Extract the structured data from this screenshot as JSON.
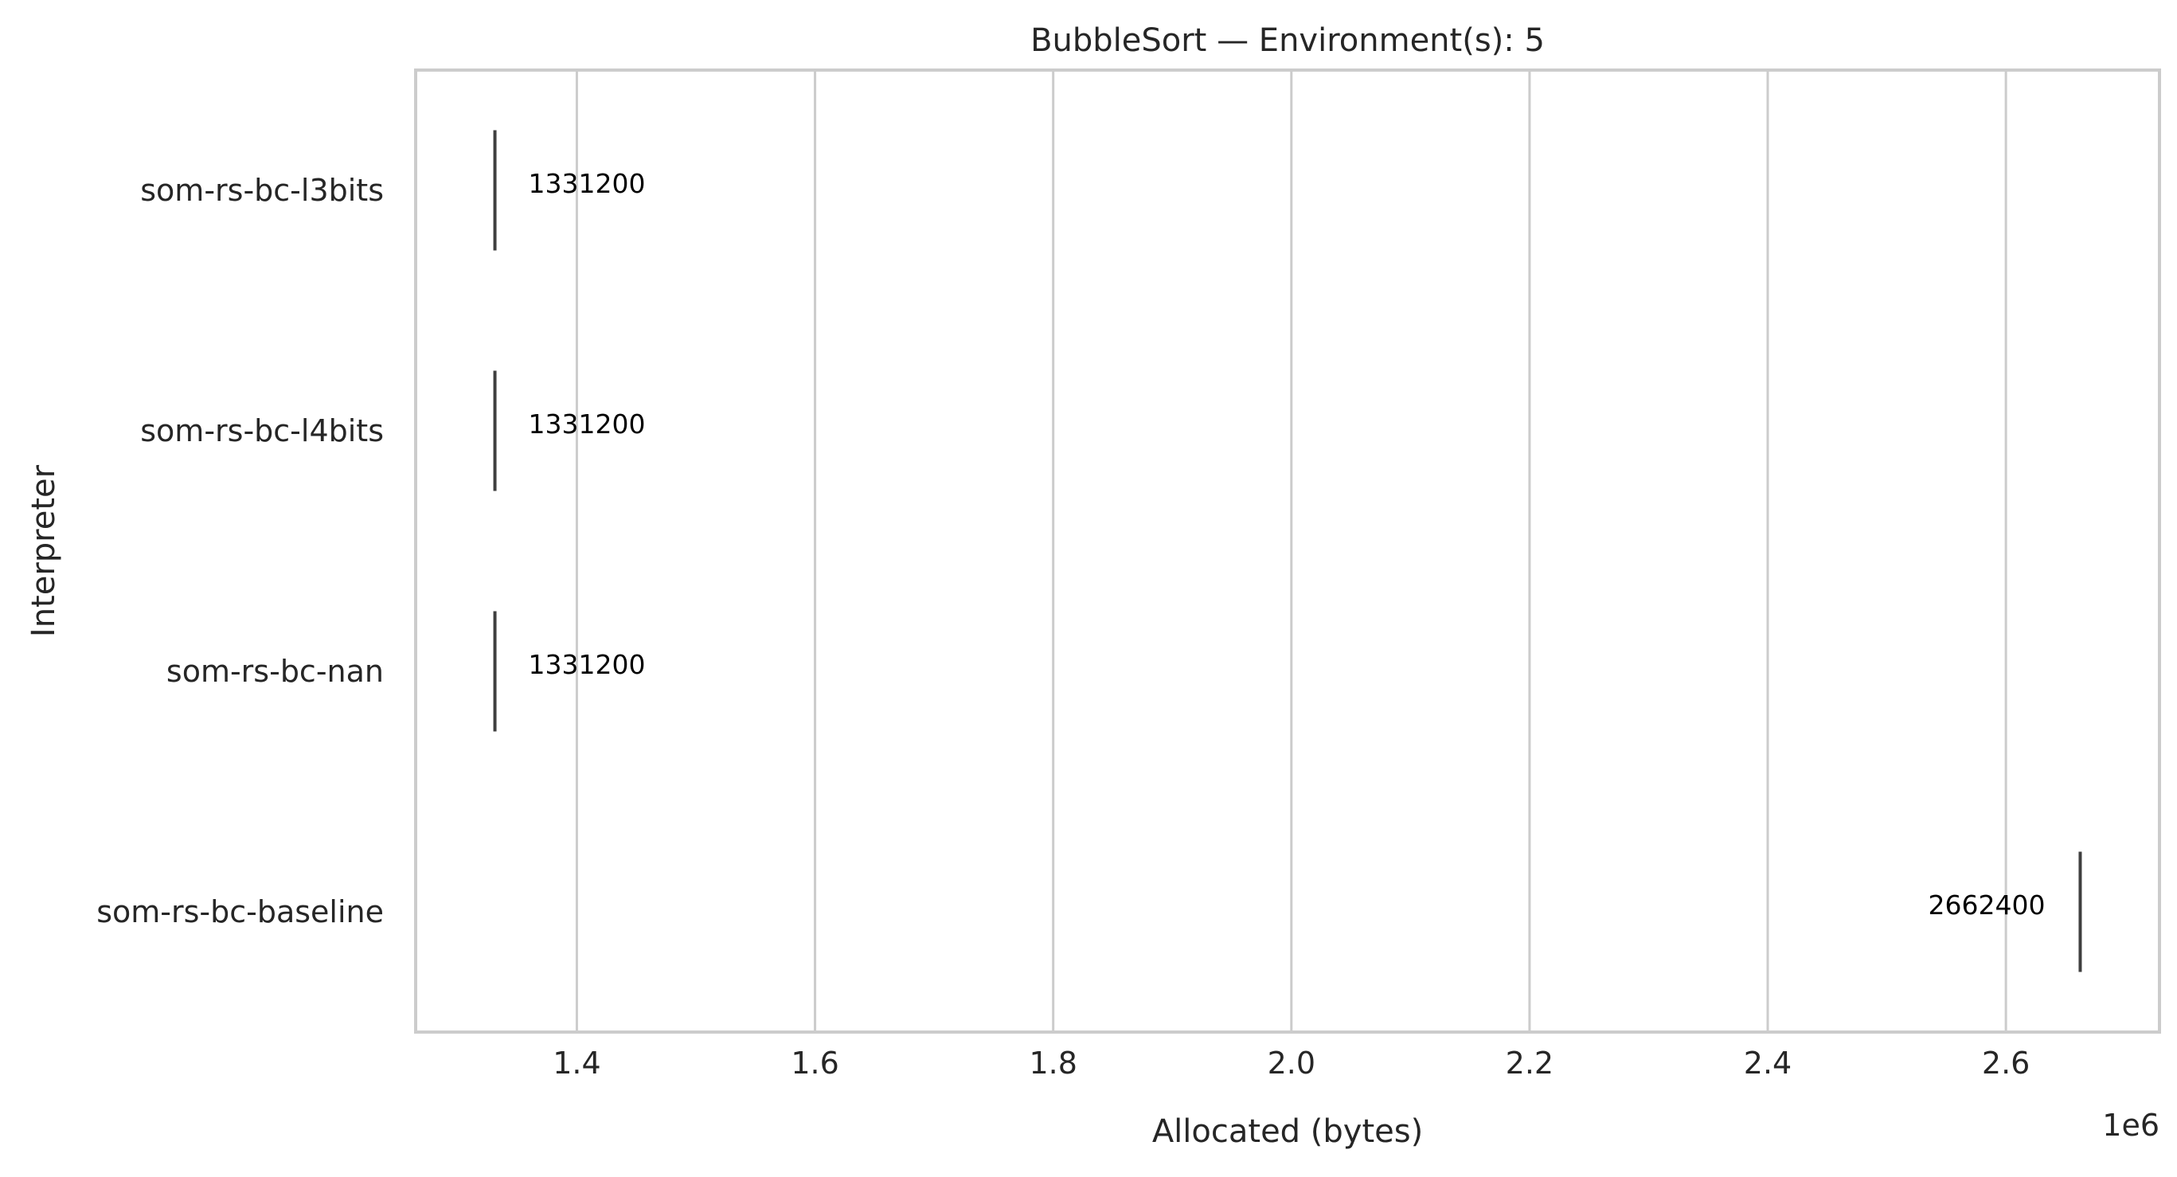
{
  "chart_data": {
    "type": "bar",
    "orientation": "horizontal",
    "title": "BubbleSort — Environment(s): 5",
    "xlabel": "Allocated (bytes)",
    "ylabel": "Interpreter",
    "x_offset_label": "1e6",
    "x_scale": 1000000,
    "xlim": [
      1264640,
      2728960
    ],
    "xticks": [
      1.4,
      1.6,
      1.8,
      2.0,
      2.2,
      2.4,
      2.6
    ],
    "xtick_labels": [
      "1.4",
      "1.6",
      "1.8",
      "2.0",
      "2.2",
      "2.4",
      "2.6"
    ],
    "grid": true,
    "categories": [
      "som-rs-bc-l3bits",
      "som-rs-bc-l4bits",
      "som-rs-bc-nan",
      "som-rs-bc-baseline"
    ],
    "values": [
      1331200,
      1331200,
      1331200,
      2662400
    ],
    "data_labels": [
      "1331200",
      "1331200",
      "1331200",
      "2662400"
    ],
    "colors": {
      "mark": "#3f3f3f",
      "grid": "#cccccc",
      "text": "#262626"
    }
  }
}
